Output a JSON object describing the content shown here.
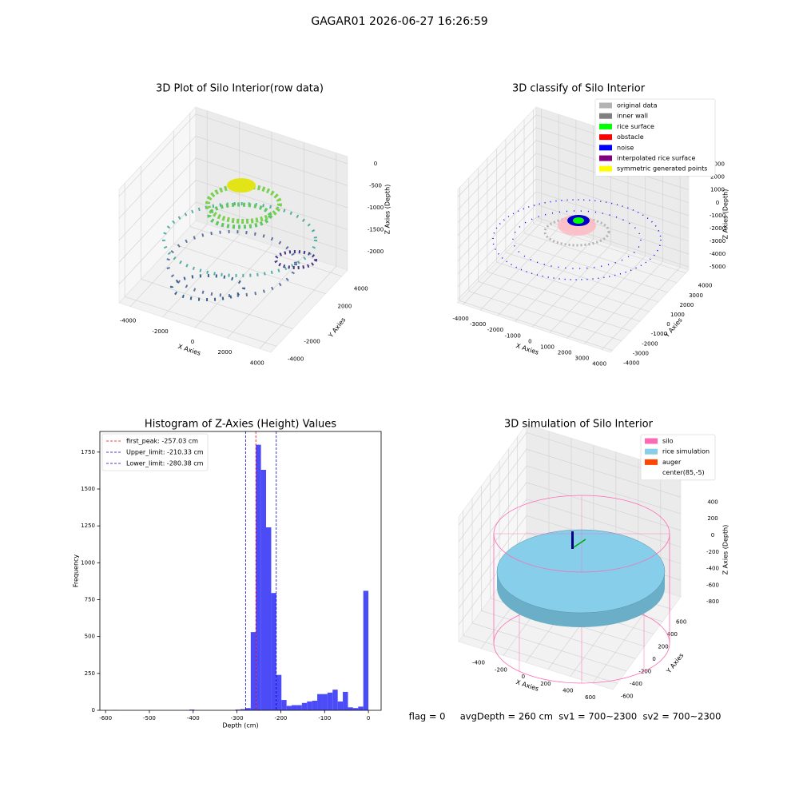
{
  "suptitle": "GAGAR01 2026-06-27 16:26:59",
  "footer": "flag = 0     avgDepth = 260 cm  sv1 = 700~2300  sv2 = 700~2300",
  "chart_data": [
    {
      "type": "scatter3d",
      "title": "3D Plot of Silo Interior(row data)",
      "xlabel": "X Axies",
      "ylabel": "Y Axies",
      "zlabel": "Z Axies (Depth)",
      "xlim": [
        -4700,
        4700
      ],
      "ylim": [
        -4700,
        4700
      ],
      "zlim": [
        -2420,
        160
      ],
      "xticks": [
        -4000,
        -2000,
        0,
        2000,
        4000
      ],
      "yticks": [
        -4000,
        -2000,
        2000,
        4000
      ],
      "zticks": [
        0,
        -500,
        -1000,
        -1500,
        -2000
      ]
    },
    {
      "type": "scatter3d",
      "title": "3D classify of Silo Interior",
      "xlabel": "X Axies",
      "ylabel": "Y Axies",
      "zlabel": "Z Axies (Depth)",
      "xlim": [
        -4300,
        4500
      ],
      "ylim": [
        -4200,
        4300
      ],
      "zlim": [
        -5250,
        3600
      ],
      "xticks": [
        -4000,
        -3000,
        -2000,
        -1000,
        0,
        1000,
        2000,
        3000,
        4000
      ],
      "yticks": [
        -4000,
        -3000,
        -2000,
        -1000,
        0,
        1000,
        2000,
        3000,
        4000
      ],
      "zticks": [
        3000,
        2000,
        1000,
        0,
        -1000,
        -2000,
        -3000,
        -4000,
        -5000
      ],
      "legend_items": [
        {
          "name": "original data",
          "color": "#b3b3b3"
        },
        {
          "name": "inner wall",
          "color": "#808080"
        },
        {
          "name": "rice surface",
          "color": "#00ff00"
        },
        {
          "name": "obstacle",
          "color": "#ff0000"
        },
        {
          "name": "noise",
          "color": "#0000ff"
        },
        {
          "name": "interpolated rice surface",
          "color": "#800080"
        },
        {
          "name": "symmetric generated points",
          "color": "#ffff00"
        }
      ]
    },
    {
      "type": "histogram",
      "title": "Histogram of Z-Axies (Height) Values",
      "xlabel": "Depth (cm)",
      "ylabel": "Frequency",
      "color": "#4b4bf7",
      "bins": [
        -584,
        -572.32,
        -560.64,
        -548.96,
        -537.28,
        -525.6,
        -513.92,
        -502.24,
        -490.56,
        -478.88,
        -467.2,
        -455.52,
        -443.84,
        -432.16,
        -420.48,
        -408.8,
        -397.12,
        -385.44,
        -373.76,
        -362.08,
        -350.4,
        -338.72,
        -327.04,
        -315.36,
        -303.68,
        -292,
        -280.32,
        -268.64,
        -256.96,
        -245.28,
        -233.6,
        -221.92,
        -210.24,
        -198.56,
        -186.88,
        -175.2,
        -163.52,
        -151.84,
        -140.16,
        -128.48,
        -116.8,
        -105.12,
        -93.44,
        -81.76,
        -70.08,
        -58.4,
        -46.72,
        -35.04,
        -23.36,
        -11.68,
        0
      ],
      "values": [
        1,
        0,
        0,
        0,
        0,
        0,
        0,
        0,
        0,
        0,
        0,
        0,
        0,
        0,
        0,
        5,
        0,
        0,
        0,
        0,
        0,
        0,
        0,
        0,
        5,
        8,
        15,
        530,
        1800,
        1630,
        1240,
        795,
        240,
        70,
        30,
        35,
        35,
        50,
        60,
        65,
        110,
        110,
        120,
        140,
        60,
        125,
        20,
        15,
        25,
        810
      ],
      "xlim": [
        -613,
        29
      ],
      "ylim": [
        0,
        1890
      ],
      "xticks": [
        -600,
        -500,
        -400,
        -300,
        -200,
        -100,
        0
      ],
      "yticks": [
        0,
        250,
        500,
        750,
        1000,
        1250,
        1500,
        1750
      ],
      "vlines": [
        {
          "name": "first_peak: -257.03 cm",
          "value": -257.03,
          "color": "#ff0000"
        },
        {
          "name": "Upper_limit: -210.33 cm",
          "value": -210.33,
          "color": "#0000cc"
        },
        {
          "name": "Lower_limit: -280.38 cm",
          "value": -280.38,
          "color": "#0000cc"
        }
      ],
      "legend": "upper left"
    },
    {
      "type": "surface3d",
      "title": "3D simulation of Silo Interior",
      "xlabel": "X Axies",
      "ylabel": "Y Axies",
      "zlabel": "Z Axies (Depth)",
      "xlim": [
        -600,
        780
      ],
      "ylim": [
        -700,
        800
      ],
      "zlim": [
        -1000,
        500
      ],
      "xticks": [
        -400,
        -200,
        0,
        200,
        400,
        600
      ],
      "yticks": [
        -600,
        -400,
        -200,
        0,
        200,
        400,
        600
      ],
      "zticks": [
        400,
        200,
        0,
        -200,
        -400,
        -600,
        -800
      ],
      "legend_items": [
        {
          "name": "silo",
          "color": "#ff69b4"
        },
        {
          "name": "rice simulation",
          "color": "#87ceeb"
        },
        {
          "name": "auger",
          "color": "#ff4500"
        },
        {
          "name": "center(85,-5)",
          "color": "#ffffff"
        }
      ]
    }
  ]
}
